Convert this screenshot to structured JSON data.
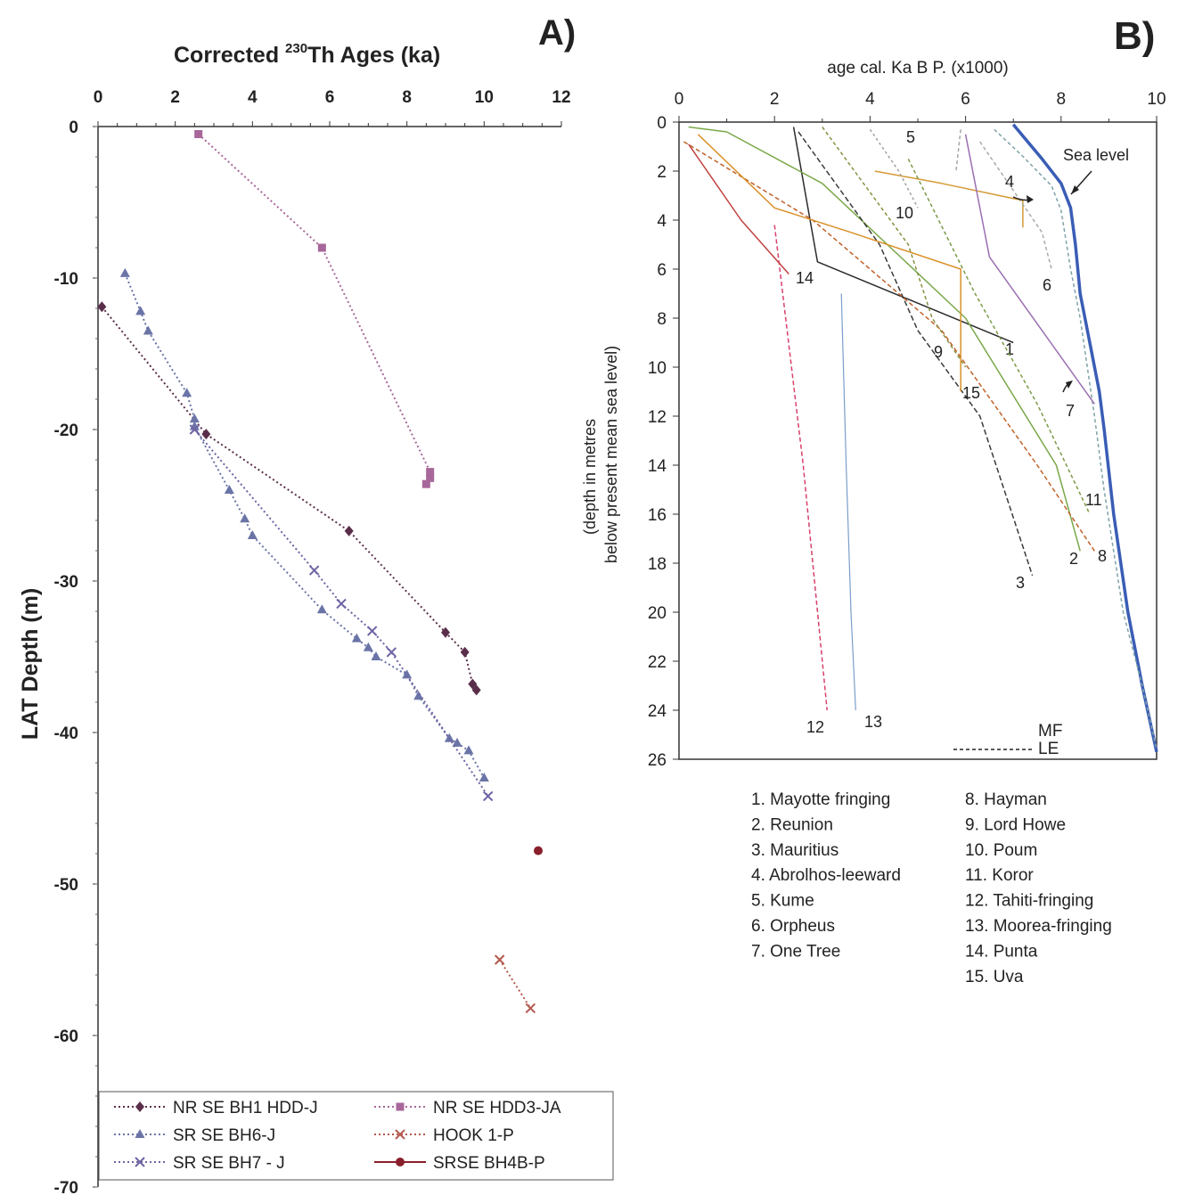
{
  "panel_a": {
    "letter": "A)",
    "title_pre": "Corrected ",
    "title_sup": "230",
    "title_post": "Th Ages (ka)",
    "xlabel": "",
    "ylabel": "LAT Depth (m)",
    "legend_labels": [
      "NR SE BH1 HDD-J",
      "NR SE HDD3-JA",
      "SR SE BH6-J",
      "HOOK 1-P",
      "SR SE BH7 - J",
      "SRSE BH4B-P"
    ]
  },
  "panel_b": {
    "letter": "B)",
    "title": "age cal. Ka B P. (x1000)",
    "ylabel_line1": "(depth in metres",
    "ylabel_line2": "below present mean sea level)",
    "sea_level_label": "Sea level",
    "mf_label": "MF",
    "le_label": "LE",
    "site_list": [
      "1. Mayotte fringing",
      "2. Reunion",
      "3. Mauritius",
      "4. Abrolhos-leeward",
      "5. Kume",
      "6. Orpheus",
      "7. One Tree",
      "8. Hayman",
      "9. Lord Howe",
      "10. Poum",
      "11. Koror",
      "12. Tahiti-fringing",
      "13. Moorea-fringing",
      "14. Punta",
      "15. Uva"
    ]
  },
  "chart_data": [
    {
      "type": "scatter",
      "title": "Corrected 230Th Ages (ka)",
      "xlabel": "",
      "ylabel": "LAT Depth (m)",
      "xlim": [
        0,
        12
      ],
      "ylim": [
        -70,
        0
      ],
      "xticks": [
        0,
        2,
        4,
        6,
        8,
        10,
        12
      ],
      "yticks": [
        0,
        -10,
        -20,
        -30,
        -40,
        -50,
        -60,
        -70
      ],
      "legend": "bottom",
      "series": [
        {
          "name": "NR SE BH1 HDD-J",
          "color": "#5a2e4a",
          "marker": "diamond",
          "line": "dotted",
          "points": [
            [
              0.1,
              -11.9
            ],
            [
              2.8,
              -20.3
            ],
            [
              6.5,
              -26.7
            ],
            [
              9.0,
              -33.4
            ],
            [
              9.5,
              -34.7
            ],
            [
              9.7,
              -36.8
            ],
            [
              9.8,
              -37.2
            ]
          ]
        },
        {
          "name": "NR SE HDD3-JA",
          "color": "#a8679a",
          "marker": "square",
          "line": "dotted",
          "points": [
            [
              2.6,
              -0.5
            ],
            [
              5.8,
              -8.0
            ],
            [
              8.6,
              -22.8
            ],
            [
              8.6,
              -23.2
            ],
            [
              8.5,
              -23.6
            ]
          ]
        },
        {
          "name": "SR SE BH6-J",
          "color": "#6a74a6",
          "marker": "triangle",
          "line": "dotted",
          "points": [
            [
              0.7,
              -9.7
            ],
            [
              1.1,
              -12.2
            ],
            [
              1.3,
              -13.5
            ],
            [
              2.3,
              -17.6
            ],
            [
              2.5,
              -19.3
            ],
            [
              2.5,
              -19.8
            ],
            [
              3.4,
              -24.0
            ],
            [
              3.8,
              -25.9
            ],
            [
              4.0,
              -27.0
            ],
            [
              5.8,
              -31.9
            ],
            [
              6.7,
              -33.8
            ],
            [
              7.0,
              -34.4
            ],
            [
              7.2,
              -35.0
            ],
            [
              8.0,
              -36.2
            ],
            [
              8.3,
              -37.6
            ],
            [
              9.1,
              -40.4
            ],
            [
              9.3,
              -40.7
            ],
            [
              9.6,
              -41.2
            ],
            [
              10.0,
              -43.0
            ]
          ]
        },
        {
          "name": "HOOK 1-P",
          "color": "#b4594e",
          "marker": "x",
          "line": "dotted",
          "points": [
            [
              10.4,
              -55.0
            ],
            [
              11.2,
              -58.2
            ]
          ]
        },
        {
          "name": "SR SE BH7 - J",
          "color": "#6e63a3",
          "marker": "x",
          "line": "dotted",
          "points": [
            [
              2.5,
              -20.0
            ],
            [
              5.6,
              -29.3
            ],
            [
              6.3,
              -31.5
            ],
            [
              7.1,
              -33.3
            ],
            [
              7.6,
              -34.7
            ],
            [
              10.1,
              -44.2
            ]
          ]
        },
        {
          "name": "SRSE BH4B-P",
          "color": "#8a1f2c",
          "marker": "circle",
          "line": "solid",
          "points": [
            [
              11.4,
              -47.8
            ]
          ]
        }
      ]
    },
    {
      "type": "line",
      "title": "age cal. Ka B P. (x1000)",
      "xlabel": "",
      "ylabel": "(depth in metres below present mean sea level)",
      "xlim": [
        0,
        10
      ],
      "ylim": [
        0,
        26
      ],
      "xticks": [
        0,
        2,
        4,
        6,
        8,
        10
      ],
      "yticks": [
        0,
        2,
        4,
        6,
        8,
        10,
        12,
        14,
        16,
        18,
        20,
        22,
        24,
        26
      ],
      "series": [
        {
          "name": "Sea level",
          "color": "#3a5db5",
          "dash": "solid",
          "width": 3.5,
          "points": [
            [
              7.0,
              0.1
            ],
            [
              7.6,
              1.5
            ],
            [
              8.0,
              2.5
            ],
            [
              8.2,
              3.5
            ],
            [
              8.3,
              5.0
            ],
            [
              8.4,
              7.0
            ],
            [
              8.6,
              9.0
            ],
            [
              8.8,
              11.0
            ],
            [
              8.9,
              12.5
            ],
            [
              9.1,
              16.0
            ],
            [
              9.4,
              20.0
            ],
            [
              9.7,
              23.0
            ],
            [
              10.0,
              25.7
            ]
          ]
        },
        {
          "name": "MF",
          "color": "#7fa3a8",
          "dash": "4,3",
          "width": 1.5,
          "points": [
            [
              6.6,
              0.3
            ],
            [
              7.2,
              1.4
            ],
            [
              7.8,
              2.6
            ],
            [
              8.0,
              3.6
            ],
            [
              8.2,
              6.0
            ],
            [
              8.4,
              8.0
            ],
            [
              8.7,
              12.0
            ],
            [
              8.9,
              15.0
            ],
            [
              9.3,
              20.0
            ],
            [
              9.7,
              23.0
            ],
            [
              10.0,
              25.6
            ]
          ]
        },
        {
          "label": "1",
          "color": "#2b2b2b",
          "dash": "solid",
          "width": 1.5,
          "points": [
            [
              2.4,
              0.2
            ],
            [
              2.9,
              5.7
            ],
            [
              7.0,
              9.0
            ]
          ]
        },
        {
          "label": "2",
          "color": "#7aa84a",
          "dash": "solid",
          "width": 1.5,
          "points": [
            [
              0.2,
              0.2
            ],
            [
              1.0,
              0.4
            ],
            [
              3.0,
              2.5
            ],
            [
              6.0,
              8.0
            ],
            [
              7.9,
              14.0
            ],
            [
              8.4,
              17.5
            ]
          ]
        },
        {
          "label": "3",
          "color": "#3b3b3b",
          "dash": "6,3",
          "width": 1.5,
          "points": [
            [
              2.5,
              0.4
            ],
            [
              4.2,
              5.0
            ],
            [
              5.0,
              8.5
            ],
            [
              6.3,
              12.0
            ],
            [
              7.4,
              18.5
            ]
          ]
        },
        {
          "label": "4",
          "color": "#d49a35",
          "dash": "solid",
          "width": 1.5,
          "points": [
            [
              4.1,
              2.0
            ],
            [
              5.5,
              2.5
            ],
            [
              7.2,
              3.2
            ],
            [
              7.2,
              4.3
            ]
          ]
        },
        {
          "label": "5",
          "color": "#a5a5a5",
          "dash": "4,3",
          "width": 1.5,
          "points": [
            [
              5.9,
              0.3
            ],
            [
              5.8,
              2.0
            ]
          ]
        },
        {
          "label": "6",
          "color": "#a9a9a9",
          "dash": "4,3",
          "width": 1.5,
          "points": [
            [
              6.3,
              0.8
            ],
            [
              7.6,
              4.5
            ],
            [
              7.8,
              6.0
            ]
          ]
        },
        {
          "label": "7",
          "color": "#9b6fb2",
          "dash": "solid",
          "width": 1.5,
          "points": [
            [
              6.0,
              0.5
            ],
            [
              6.5,
              5.5
            ],
            [
              8.7,
              11.5
            ]
          ]
        },
        {
          "label": "8",
          "color": "#c0622a",
          "dash": "5,3",
          "width": 1.5,
          "points": [
            [
              0.1,
              0.8
            ],
            [
              2.8,
              4.0
            ],
            [
              5.5,
              8.5
            ],
            [
              7.5,
              14.0
            ],
            [
              8.7,
              17.5
            ]
          ]
        },
        {
          "label": "9",
          "color": "#8a8f40",
          "dash": "4,3",
          "width": 1.5,
          "points": [
            [
              3.0,
              0.2
            ],
            [
              4.8,
              5.0
            ],
            [
              5.3,
              8.0
            ],
            [
              6.0,
              10.0
            ]
          ]
        },
        {
          "label": "10",
          "color": "#a0a0a0",
          "dash": "3,3",
          "width": 1.5,
          "points": [
            [
              4.0,
              0.3
            ],
            [
              4.6,
              2.0
            ],
            [
              5.0,
              3.5
            ]
          ]
        },
        {
          "label": "11",
          "color": "#7b9a46",
          "dash": "4,3",
          "width": 1.5,
          "points": [
            [
              4.8,
              1.5
            ],
            [
              6.2,
              7.0
            ],
            [
              7.5,
              11.5
            ],
            [
              8.6,
              16.0
            ]
          ]
        },
        {
          "label": "12",
          "color": "#d8406a",
          "dash": "5,3",
          "width": 1.5,
          "points": [
            [
              2.0,
              4.2
            ],
            [
              2.6,
              14.0
            ],
            [
              3.1,
              24.0
            ]
          ]
        },
        {
          "label": "13",
          "color": "#7a9ec8",
          "dash": "solid",
          "width": 1.2,
          "points": [
            [
              3.4,
              7.0
            ],
            [
              3.5,
              14.0
            ],
            [
              3.6,
              20.0
            ],
            [
              3.7,
              24.0
            ]
          ]
        },
        {
          "label": "14",
          "color": "#c24040",
          "dash": "solid",
          "width": 1.5,
          "points": [
            [
              0.2,
              0.9
            ],
            [
              1.3,
              4.0
            ],
            [
              2.3,
              6.2
            ]
          ]
        },
        {
          "label": "15",
          "color": "#d9922b",
          "dash": "solid",
          "width": 1.5,
          "points": [
            [
              0.4,
              0.5
            ],
            [
              2.0,
              3.5
            ],
            [
              3.6,
              4.5
            ],
            [
              5.9,
              6.0
            ],
            [
              5.9,
              11.0
            ]
          ]
        }
      ]
    }
  ]
}
